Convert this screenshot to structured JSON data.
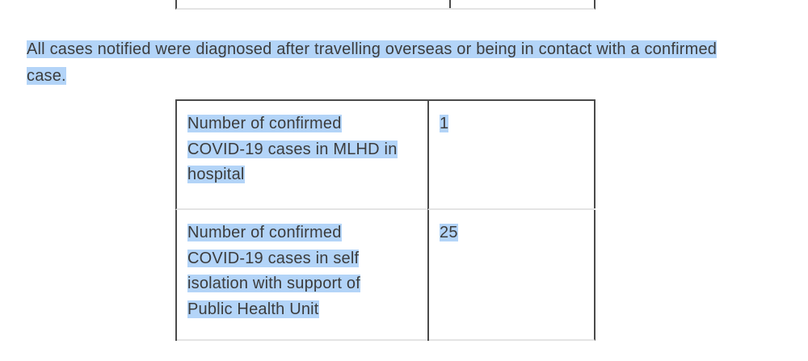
{
  "colors": {
    "highlight": "#b3d4f8",
    "text": "#3c3c3c",
    "border_dark": "#4a4a4a",
    "border_light": "#e4e4e4",
    "page_bg": "#ffffff"
  },
  "intro_paragraph": {
    "lines": [
      "All cases notified were diagnosed after travelling overseas or being in contact with a confirmed",
      "case."
    ]
  },
  "stats_table": {
    "rows": [
      {
        "label_lines": [
          "Number of confirmed",
          "COVID-19 cases in MLHD in",
          "hospital"
        ],
        "value": "1"
      },
      {
        "label_lines": [
          "Number of confirmed",
          "COVID-19 cases in self",
          "isolation with support of",
          "Public Health Unit"
        ],
        "value": "25"
      }
    ]
  }
}
